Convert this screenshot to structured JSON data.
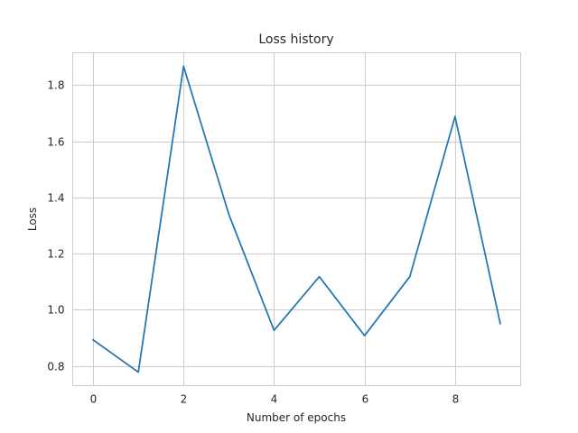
{
  "chart_data": {
    "type": "line",
    "title": "Loss history",
    "xlabel": "Number of epochs",
    "ylabel": "Loss",
    "x": [
      0,
      1,
      2,
      3,
      4,
      5,
      6,
      7,
      8,
      9
    ],
    "series": [
      {
        "values": [
          0.893,
          0.778,
          1.867,
          1.34,
          0.927,
          1.118,
          0.908,
          1.118,
          1.688,
          0.951
        ],
        "color": "#1f77b4"
      }
    ],
    "xlim": [
      -0.45,
      9.45
    ],
    "ylim": [
      0.73,
      1.915
    ],
    "xticks": [
      0,
      2,
      4,
      6,
      8
    ],
    "yticks": [
      0.8,
      1.0,
      1.2,
      1.4,
      1.6,
      1.8
    ],
    "xtick_labels": [
      "0",
      "2",
      "4",
      "6",
      "8"
    ],
    "ytick_labels": [
      "0.8",
      "1.0",
      "1.2",
      "1.4",
      "1.6",
      "1.8"
    ],
    "grid": true,
    "legend": "none"
  }
}
